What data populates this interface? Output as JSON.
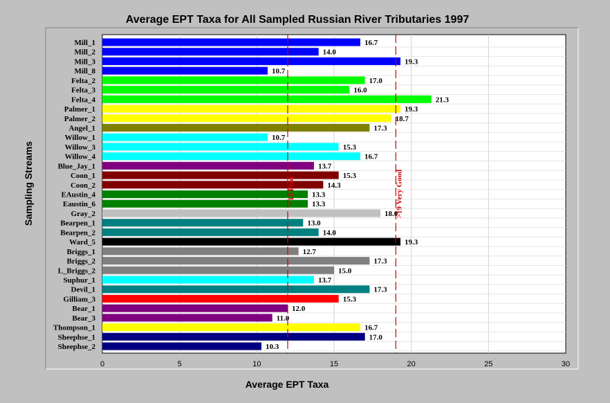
{
  "chart_data": {
    "type": "bar",
    "orientation": "horizontal",
    "title": "Average EPT Taxa for All Sampled Russian River Tributaries 1997",
    "xlabel": "Average EPT Taxa",
    "ylabel": "Sampling Streams",
    "xlim": [
      0,
      30
    ],
    "xticks": [
      0,
      5,
      10,
      15,
      20,
      25,
      30
    ],
    "grid": true,
    "categories": [
      "Mill_1",
      "Mill_2",
      "Mill_3",
      "Mill_8",
      "Felta_2",
      "Felta_3",
      "Felta_4",
      "Palmer_1",
      "Palmer_2",
      "Angel_1",
      "Willow_1",
      "Willow_3",
      "Willow_4",
      "Blue_Jay_1",
      "Coon_1",
      "Coon_2",
      "EAustin_4",
      "Eaustin_6",
      "Gray_2",
      "Bearpen_1",
      "Bearpen_2",
      "Ward_5",
      "Briggs_1",
      "Briggs_2",
      "L_Briggs_2",
      "Suphur_1",
      "Devil_1",
      "Gilliam_3",
      "Bear_1",
      "Bear_3",
      "Thompson_1",
      "Sheephse_1",
      "Sheephse_2"
    ],
    "values": [
      16.7,
      14.0,
      19.3,
      10.7,
      17.0,
      16.0,
      21.3,
      19.3,
      18.7,
      17.3,
      10.7,
      15.3,
      16.7,
      13.7,
      15.3,
      14.3,
      13.3,
      13.3,
      18.0,
      13.0,
      14.0,
      19.3,
      12.7,
      17.3,
      15.0,
      13.7,
      17.3,
      15.3,
      12.0,
      11.0,
      16.7,
      17.0,
      10.3
    ],
    "value_labels": [
      "16.7",
      "14.0",
      "19.3",
      "10.7",
      "17.0",
      "16.0",
      "21.3",
      "19.3",
      "18.7",
      "17.3",
      "10.7",
      "15.3",
      "16.7",
      "13.7",
      "15.3",
      "14.3",
      "13.3",
      "13.3",
      "18.0",
      "13.0",
      "14.0",
      "19.3",
      "12.7",
      "17.3",
      "15.0",
      "13.7",
      "17.3",
      "15.3",
      "12.0",
      "11.0",
      "16.7",
      "17.0",
      "10.3"
    ],
    "colors": [
      "#0000ff",
      "#0000ff",
      "#0000ff",
      "#0000ff",
      "#00ff00",
      "#00ff00",
      "#00ff00",
      "#ffff00",
      "#ffff00",
      "#808000",
      "#00ffff",
      "#00ffff",
      "#00ffff",
      "#800080",
      "#800000",
      "#800000",
      "#008000",
      "#008000",
      "#c0c0c0",
      "#008080",
      "#008080",
      "#000000",
      "#808080",
      "#808080",
      "#808080",
      "#00ffff",
      "#008080",
      "#ff0000",
      "#800080",
      "#800080",
      "#ffff00",
      "#000080",
      "#000080"
    ],
    "reference_lines": [
      {
        "x": 12,
        "label": "<12 Poor",
        "color": "#cc0000"
      },
      {
        "x": 19,
        "label": ">19 Very Good",
        "color": "#cc0000"
      }
    ]
  }
}
